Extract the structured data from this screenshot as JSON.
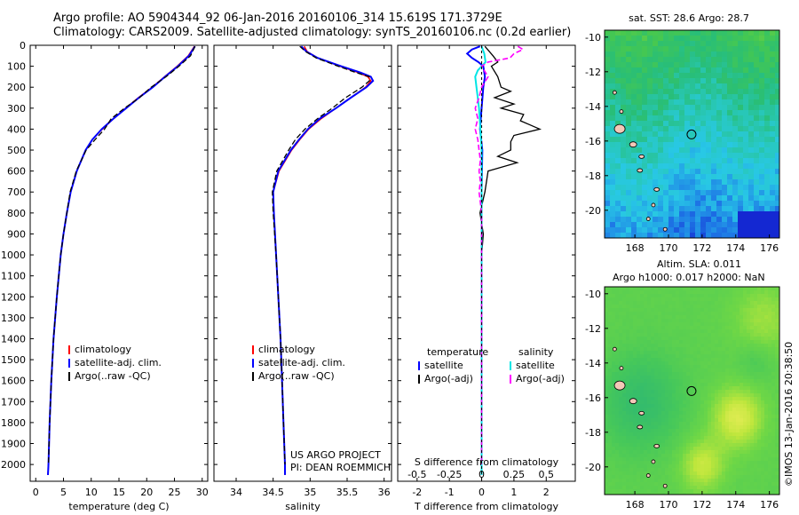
{
  "header": {
    "line1": "Argo profile: AO 5904344_92 06-Jan-2016 20160106_314 15.619S 171.3729E",
    "line2": "Climatology: CARS2009. Satellite-adjusted climatology: synTS_20160106.nc (0.2d earlier)"
  },
  "colors": {
    "climatology": "#ff0000",
    "satellite": "#0000ff",
    "argo": "#000000",
    "sat_salinity": "#00e5e5",
    "argo_salinity": "#ff00ff"
  },
  "chart_data": [
    {
      "type": "line",
      "id": "temperature",
      "xlabel": "temperature (deg C)",
      "xlim": [
        -1,
        31
      ],
      "xticks": [
        0,
        5,
        10,
        15,
        20,
        25,
        30
      ],
      "ylim": [
        0,
        2080
      ],
      "yticks": [
        0,
        100,
        200,
        300,
        400,
        500,
        600,
        700,
        800,
        900,
        1000,
        1100,
        1200,
        1300,
        1400,
        1500,
        1600,
        1700,
        1800,
        1900,
        2000
      ],
      "legend": [
        "climatology",
        "satellite-adj. clim.",
        "Argo(..raw -QC)"
      ],
      "series": [
        {
          "name": "climatology",
          "depth": [
            5,
            50,
            100,
            150,
            200,
            250,
            300,
            350,
            400,
            450,
            500,
            600,
            700,
            800,
            900,
            1000,
            1200,
            1400,
            1600,
            1800,
            2000,
            2050
          ],
          "values": [
            28.6,
            27.5,
            25.5,
            23.2,
            21.0,
            18.5,
            16.2,
            14.0,
            12.0,
            10.2,
            9.0,
            7.4,
            6.3,
            5.6,
            5.0,
            4.5,
            3.8,
            3.2,
            2.8,
            2.5,
            2.3,
            2.2
          ]
        },
        {
          "name": "satellite-adj. clim.",
          "depth": [
            5,
            50,
            100,
            150,
            200,
            250,
            300,
            350,
            400,
            450,
            500,
            600,
            700,
            800,
            900,
            1000,
            1200,
            1400,
            1600,
            1800,
            2000,
            2050
          ],
          "values": [
            28.7,
            27.6,
            25.6,
            23.3,
            21.1,
            18.6,
            16.3,
            14.0,
            11.9,
            10.2,
            9.0,
            7.4,
            6.3,
            5.6,
            5.0,
            4.5,
            3.8,
            3.2,
            2.8,
            2.5,
            2.3,
            2.2
          ]
        },
        {
          "name": "Argo(..raw -QC)",
          "depth": [
            5,
            50,
            100,
            150,
            200,
            250,
            300,
            350,
            400,
            450,
            500,
            600,
            700,
            800,
            900,
            1000,
            1200,
            1400,
            1600,
            1800,
            2000
          ],
          "values": [
            28.7,
            27.9,
            25.8,
            23.5,
            20.8,
            18.7,
            16.0,
            13.6,
            12.4,
            10.7,
            9.1,
            7.3,
            6.2,
            5.6,
            5.0,
            4.5,
            3.8,
            3.2,
            2.8,
            2.5,
            2.3
          ]
        }
      ]
    },
    {
      "type": "line",
      "id": "salinity",
      "xlabel": "salinity",
      "xlim": [
        33.7,
        36.1
      ],
      "xticks": [
        34,
        34.5,
        35,
        35.5,
        36
      ],
      "xticklabels": [
        "34",
        "34.5",
        "35",
        "35.5",
        "36"
      ],
      "ylim": [
        0,
        2080
      ],
      "legend": [
        "climatology",
        "satellite-adj. clim.",
        "Argo(..raw -QC)"
      ],
      "annotation": [
        "US ARGO PROJECT",
        "PI: DEAN ROEMMICH"
      ],
      "series": [
        {
          "name": "climatology",
          "depth": [
            5,
            30,
            60,
            100,
            130,
            150,
            170,
            200,
            250,
            300,
            350,
            400,
            450,
            500,
            600,
            700,
            800,
            1000,
            1200,
            1400,
            1600,
            1800,
            2000,
            2050
          ],
          "values": [
            34.92,
            34.96,
            35.1,
            35.4,
            35.65,
            35.78,
            35.82,
            35.75,
            35.55,
            35.35,
            35.15,
            34.98,
            34.86,
            34.75,
            34.58,
            34.5,
            34.51,
            34.54,
            34.57,
            34.6,
            34.62,
            34.64,
            34.66,
            34.66
          ]
        },
        {
          "name": "satellite-adj. clim.",
          "depth": [
            5,
            30,
            60,
            100,
            130,
            150,
            170,
            200,
            250,
            300,
            350,
            400,
            450,
            500,
            600,
            700,
            800,
            1000,
            1200,
            1400,
            1600,
            1800,
            2000,
            2050
          ],
          "values": [
            34.88,
            34.95,
            35.1,
            35.42,
            35.68,
            35.82,
            35.85,
            35.76,
            35.55,
            35.35,
            35.13,
            34.97,
            34.85,
            34.74,
            34.57,
            34.5,
            34.51,
            34.54,
            34.57,
            34.6,
            34.62,
            34.64,
            34.66,
            34.66
          ]
        },
        {
          "name": "Argo(..raw -QC)",
          "depth": [
            5,
            30,
            60,
            100,
            130,
            150,
            170,
            200,
            250,
            300,
            350,
            400,
            450,
            500,
            600,
            700,
            800,
            1000,
            1200,
            1400,
            1600,
            1800,
            2000
          ],
          "values": [
            34.86,
            34.94,
            35.08,
            35.38,
            35.62,
            35.8,
            35.8,
            35.7,
            35.48,
            35.3,
            35.1,
            34.93,
            34.8,
            34.71,
            34.55,
            34.49,
            34.5,
            34.54,
            34.57,
            34.6,
            34.62,
            34.64,
            34.66
          ]
        }
      ]
    },
    {
      "type": "line",
      "id": "difference",
      "xlabel": "T difference from climatology",
      "xlabel2": "S difference from climatology",
      "xlim": [
        -2.6,
        2.9
      ],
      "xticks": [
        -2,
        -1,
        0,
        1,
        2
      ],
      "sticks": [
        -0.5,
        -0.25,
        0,
        0.25,
        0.5
      ],
      "sticklabels": [
        "-0.5",
        "-0.25",
        "0",
        "0.25",
        "0.5"
      ],
      "ylim": [
        0,
        2080
      ],
      "legend_headers": [
        "temperature",
        "salinity"
      ],
      "legend": [
        "satellite",
        "Argo(-adj)",
        "satellite",
        "Argo(-adj)"
      ],
      "series": [
        {
          "name": "satellite (temperature)",
          "depth": [
            5,
            20,
            40,
            60,
            80,
            100,
            150,
            200,
            300,
            400,
            500,
            700,
            1000,
            1500,
            2000,
            2050
          ],
          "values": [
            -0.05,
            -0.3,
            -0.45,
            -0.3,
            -0.1,
            0.05,
            0.1,
            0.05,
            0.0,
            -0.05,
            0.02,
            0.0,
            0.0,
            0.0,
            0.0,
            0.0
          ]
        },
        {
          "name": "Argo(-adj) (temperature)",
          "depth": [
            5,
            50,
            80,
            100,
            150,
            200,
            220,
            250,
            280,
            300,
            330,
            360,
            380,
            400,
            430,
            460,
            500,
            530,
            560,
            600,
            650,
            700,
            800,
            900,
            1000,
            1200,
            1400,
            1600,
            1800,
            2000
          ],
          "values": [
            0.1,
            0.35,
            0.5,
            0.3,
            0.5,
            0.6,
            0.9,
            0.4,
            1.0,
            0.6,
            1.3,
            1.2,
            1.5,
            1.8,
            1.0,
            0.9,
            0.9,
            0.5,
            1.1,
            0.2,
            0.15,
            0.1,
            -0.05,
            0.05,
            0.0,
            0.0,
            0.0,
            0.0,
            0.0,
            0.0
          ]
        },
        {
          "name": "satellite (salinity)",
          "depth": [
            5,
            40,
            80,
            120,
            150,
            200,
            300,
            400,
            500,
            700,
            1000,
            1500,
            2000,
            2050
          ],
          "values": [
            0.0,
            0.02,
            0.03,
            -0.03,
            -0.05,
            -0.04,
            -0.02,
            -0.01,
            0.0,
            0.0,
            0.0,
            0.0,
            0.0,
            0.0
          ]
        },
        {
          "name": "Argo(-adj) (salinity)",
          "depth": [
            5,
            20,
            40,
            60,
            80,
            100,
            150,
            200,
            250,
            300,
            350,
            400,
            450,
            500,
            550,
            600,
            650,
            700,
            750,
            800,
            900,
            1000,
            1200,
            1500,
            2000
          ],
          "values": [
            0.28,
            0.32,
            0.25,
            0.22,
            0.05,
            0.0,
            0.05,
            0.0,
            -0.02,
            -0.05,
            -0.03,
            -0.05,
            -0.03,
            -0.02,
            -0.01,
            -0.02,
            -0.01,
            -0.02,
            -0.01,
            0.0,
            0.0,
            0.0,
            0.0,
            0.0,
            0.0
          ]
        }
      ]
    },
    {
      "type": "heatmap",
      "id": "sst_map",
      "title": "sat. SST: 28.6  Argo: 28.7",
      "xlim": [
        166.2,
        176.6
      ],
      "ylim": [
        -21.6,
        -9.6
      ],
      "xticks": [
        168,
        170,
        172,
        174,
        176
      ],
      "yticks": [
        -10,
        -12,
        -14,
        -16,
        -18,
        -20
      ],
      "marker": {
        "lon": 171.37,
        "lat": -15.62
      }
    },
    {
      "type": "heatmap",
      "id": "sla_map",
      "title": "Altim. SLA: 0.011",
      "subtitle": "Argo h1000: 0.017  h2000: NaN",
      "xlim": [
        166.2,
        176.6
      ],
      "ylim": [
        -21.6,
        -9.6
      ],
      "xticks": [
        168,
        170,
        172,
        174,
        176
      ],
      "yticks": [
        -10,
        -12,
        -14,
        -16,
        -18,
        -20
      ],
      "marker": {
        "lon": 171.37,
        "lat": -15.62
      }
    }
  ],
  "footer": {
    "credit": "©IMOS 13-Jan-2016 20:38:50"
  }
}
